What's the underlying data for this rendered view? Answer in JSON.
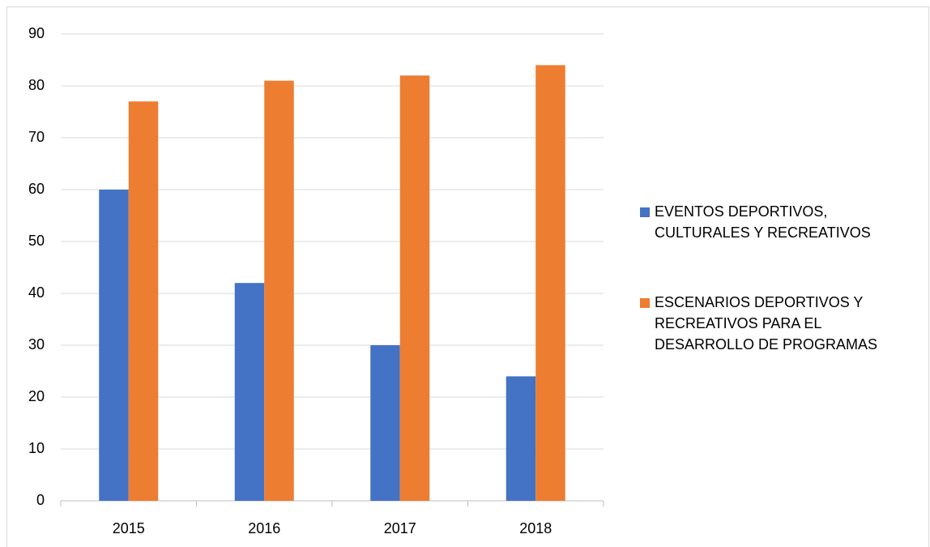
{
  "chart_data": {
    "type": "bar",
    "categories": [
      "2015",
      "2016",
      "2017",
      "2018"
    ],
    "series": [
      {
        "name": "EVENTOS DEPORTIVOS, CULTURALES Y RECREATIVOS",
        "color": "#4472c4",
        "values": [
          60,
          42,
          30,
          24
        ]
      },
      {
        "name": "ESCENARIOS DEPORTIVOS Y RECREATIVOS PARA EL DESARROLLO DE PROGRAMAS",
        "color": "#ed7d31",
        "values": [
          77,
          81,
          82,
          84
        ]
      }
    ],
    "ylim": [
      0,
      90
    ],
    "yticks": [
      0,
      10,
      20,
      30,
      40,
      50,
      60,
      70,
      80,
      90
    ],
    "grid": true,
    "legend": "right"
  }
}
